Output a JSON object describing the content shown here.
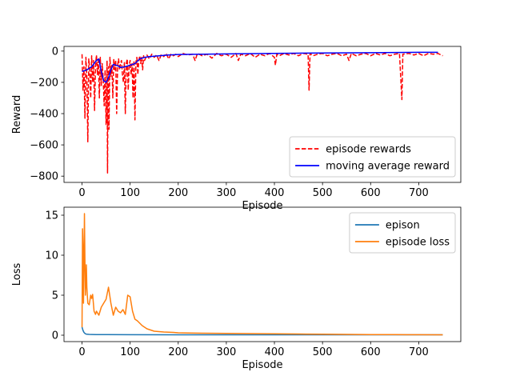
{
  "chart_data": [
    {
      "type": "line",
      "xlabel": "Episode",
      "ylabel": "Reward",
      "xlim": [
        -37.5,
        787.5
      ],
      "ylim": [
        -840,
        30
      ],
      "xticks": [
        0,
        100,
        200,
        300,
        400,
        500,
        600,
        700
      ],
      "yticks": [
        0,
        -200,
        -400,
        -600,
        -800
      ],
      "grid": false,
      "legend_position": "lower right",
      "series": [
        {
          "name": "episode rewards",
          "color": "#ff0000",
          "style": "dashed",
          "points": [
            [
              0,
              -20
            ],
            [
              2,
              -250
            ],
            [
              4,
              -100
            ],
            [
              6,
              -430
            ],
            [
              8,
              -40
            ],
            [
              10,
              -160
            ],
            [
              12,
              -580
            ],
            [
              14,
              -50
            ],
            [
              16,
              -120
            ],
            [
              18,
              -300
            ],
            [
              20,
              -30
            ],
            [
              22,
              -200
            ],
            [
              24,
              -60
            ],
            [
              26,
              -380
            ],
            [
              28,
              -90
            ],
            [
              30,
              -25
            ],
            [
              32,
              -150
            ],
            [
              34,
              -60
            ],
            [
              36,
              -300
            ],
            [
              38,
              -40
            ],
            [
              40,
              -220
            ],
            [
              42,
              -80
            ],
            [
              44,
              -180
            ],
            [
              46,
              -350
            ],
            [
              48,
              -120
            ],
            [
              50,
              -470
            ],
            [
              52,
              -60
            ],
            [
              53,
              -780
            ],
            [
              54,
              -200
            ],
            [
              55,
              -100
            ],
            [
              56,
              -500
            ],
            [
              58,
              -40
            ],
            [
              60,
              -160
            ],
            [
              62,
              -90
            ],
            [
              64,
              -300
            ],
            [
              66,
              -50
            ],
            [
              68,
              -120
            ],
            [
              70,
              -60
            ],
            [
              72,
              -400
            ],
            [
              74,
              -90
            ],
            [
              76,
              -50
            ],
            [
              78,
              -120
            ],
            [
              80,
              -80
            ],
            [
              82,
              -60
            ],
            [
              84,
              -150
            ],
            [
              86,
              -200
            ],
            [
              88,
              -70
            ],
            [
              90,
              -400
            ],
            [
              92,
              -80
            ],
            [
              94,
              -50
            ],
            [
              96,
              -250
            ],
            [
              98,
              -90
            ],
            [
              100,
              -60
            ],
            [
              102,
              -150
            ],
            [
              104,
              -80
            ],
            [
              106,
              -300
            ],
            [
              108,
              -60
            ],
            [
              110,
              -440
            ],
            [
              112,
              -70
            ],
            [
              114,
              -40
            ],
            [
              116,
              -150
            ],
            [
              118,
              -60
            ],
            [
              120,
              -30
            ],
            [
              122,
              -80
            ],
            [
              124,
              -40
            ],
            [
              126,
              -120
            ],
            [
              128,
              -30
            ],
            [
              130,
              -60
            ],
            [
              135,
              -25
            ],
            [
              140,
              -50
            ],
            [
              145,
              -20
            ],
            [
              150,
              -40
            ],
            [
              155,
              -25
            ],
            [
              160,
              -60
            ],
            [
              165,
              -20
            ],
            [
              170,
              -35
            ],
            [
              175,
              -15
            ],
            [
              180,
              -50
            ],
            [
              185,
              -20
            ],
            [
              190,
              -30
            ],
            [
              195,
              -20
            ],
            [
              200,
              -35
            ],
            [
              210,
              -15
            ],
            [
              220,
              -25
            ],
            [
              230,
              -20
            ],
            [
              235,
              -60
            ],
            [
              240,
              -15
            ],
            [
              250,
              -30
            ],
            [
              260,
              -20
            ],
            [
              270,
              -45
            ],
            [
              280,
              -15
            ],
            [
              290,
              -30
            ],
            [
              300,
              -20
            ],
            [
              310,
              -40
            ],
            [
              320,
              -15
            ],
            [
              325,
              -60
            ],
            [
              330,
              -20
            ],
            [
              340,
              -30
            ],
            [
              350,
              -15
            ],
            [
              360,
              -40
            ],
            [
              370,
              -20
            ],
            [
              380,
              -30
            ],
            [
              390,
              -15
            ],
            [
              400,
              -40
            ],
            [
              402,
              -90
            ],
            [
              405,
              -20
            ],
            [
              410,
              -30
            ],
            [
              420,
              -15
            ],
            [
              430,
              -25
            ],
            [
              440,
              -15
            ],
            [
              450,
              -30
            ],
            [
              460,
              -15
            ],
            [
              470,
              -20
            ],
            [
              472,
              -250
            ],
            [
              474,
              -15
            ],
            [
              480,
              -30
            ],
            [
              490,
              -20
            ],
            [
              500,
              -15
            ],
            [
              510,
              -30
            ],
            [
              520,
              -20
            ],
            [
              530,
              -15
            ],
            [
              540,
              -30
            ],
            [
              550,
              -20
            ],
            [
              555,
              -60
            ],
            [
              560,
              -15
            ],
            [
              570,
              -30
            ],
            [
              580,
              -20
            ],
            [
              590,
              -15
            ],
            [
              600,
              -30
            ],
            [
              610,
              -15
            ],
            [
              620,
              -25
            ],
            [
              630,
              -15
            ],
            [
              640,
              -30
            ],
            [
              650,
              -20
            ],
            [
              660,
              -15
            ],
            [
              665,
              -310
            ],
            [
              667,
              -20
            ],
            [
              680,
              -15
            ],
            [
              690,
              -25
            ],
            [
              700,
              -15
            ],
            [
              710,
              -30
            ],
            [
              720,
              -15
            ],
            [
              730,
              -20
            ],
            [
              740,
              -15
            ],
            [
              750,
              -30
            ]
          ]
        },
        {
          "name": "moving average reward",
          "color": "#0000ff",
          "style": "solid",
          "points": [
            [
              0,
              -130
            ],
            [
              5,
              -125
            ],
            [
              10,
              -120
            ],
            [
              15,
              -110
            ],
            [
              20,
              -100
            ],
            [
              25,
              -80
            ],
            [
              30,
              -60
            ],
            [
              35,
              -50
            ],
            [
              40,
              -130
            ],
            [
              45,
              -190
            ],
            [
              50,
              -200
            ],
            [
              55,
              -170
            ],
            [
              60,
              -120
            ],
            [
              65,
              -85
            ],
            [
              70,
              -90
            ],
            [
              75,
              -95
            ],
            [
              80,
              -105
            ],
            [
              90,
              -100
            ],
            [
              100,
              -90
            ],
            [
              110,
              -80
            ],
            [
              120,
              -50
            ],
            [
              130,
              -40
            ],
            [
              140,
              -35
            ],
            [
              160,
              -30
            ],
            [
              180,
              -25
            ],
            [
              200,
              -22
            ],
            [
              250,
              -20
            ],
            [
              300,
              -18
            ],
            [
              400,
              -15
            ],
            [
              500,
              -12
            ],
            [
              600,
              -10
            ],
            [
              700,
              -8
            ],
            [
              740,
              -8
            ]
          ]
        }
      ]
    },
    {
      "type": "line",
      "xlabel": "Episode",
      "ylabel": "Loss",
      "xlim": [
        -37.5,
        787.5
      ],
      "ylim": [
        -0.8,
        16.0
      ],
      "xticks": [
        0,
        100,
        200,
        300,
        400,
        500,
        600,
        700
      ],
      "yticks": [
        0,
        5,
        10,
        15
      ],
      "grid": false,
      "legend_position": "upper right",
      "series": [
        {
          "name": "epison",
          "color": "#1f77b4",
          "style": "solid",
          "points": [
            [
              0,
              1.0
            ],
            [
              2,
              0.6
            ],
            [
              4,
              0.35
            ],
            [
              6,
              0.22
            ],
            [
              8,
              0.15
            ],
            [
              10,
              0.12
            ],
            [
              15,
              0.1
            ],
            [
              20,
              0.09
            ],
            [
              30,
              0.08
            ],
            [
              50,
              0.07
            ],
            [
              100,
              0.06
            ],
            [
              200,
              0.05
            ],
            [
              400,
              0.05
            ],
            [
              600,
              0.05
            ],
            [
              750,
              0.05
            ]
          ]
        },
        {
          "name": "episode loss",
          "color": "#ff7f0e",
          "style": "solid",
          "points": [
            [
              0,
              1.0
            ],
            [
              1,
              13.3
            ],
            [
              2,
              11.0
            ],
            [
              3,
              4.0
            ],
            [
              4,
              9.0
            ],
            [
              5,
              15.2
            ],
            [
              6,
              9.5
            ],
            [
              7,
              5.0
            ],
            [
              8,
              6.5
            ],
            [
              9,
              8.8
            ],
            [
              10,
              6.0
            ],
            [
              12,
              4.0
            ],
            [
              15,
              3.8
            ],
            [
              18,
              5.0
            ],
            [
              20,
              4.6
            ],
            [
              22,
              5.1
            ],
            [
              25,
              3.0
            ],
            [
              28,
              2.6
            ],
            [
              30,
              3.0
            ],
            [
              35,
              2.5
            ],
            [
              40,
              3.5
            ],
            [
              45,
              4.0
            ],
            [
              50,
              4.5
            ],
            [
              55,
              6.0
            ],
            [
              60,
              4.0
            ],
            [
              65,
              2.5
            ],
            [
              70,
              3.5
            ],
            [
              75,
              3.0
            ],
            [
              80,
              2.8
            ],
            [
              85,
              3.2
            ],
            [
              90,
              2.6
            ],
            [
              95,
              5.0
            ],
            [
              100,
              4.8
            ],
            [
              105,
              3.0
            ],
            [
              110,
              2.0
            ],
            [
              115,
              1.8
            ],
            [
              120,
              1.5
            ],
            [
              125,
              1.2
            ],
            [
              130,
              1.0
            ],
            [
              135,
              0.8
            ],
            [
              140,
              0.7
            ],
            [
              150,
              0.5
            ],
            [
              160,
              0.45
            ],
            [
              170,
              0.4
            ],
            [
              180,
              0.38
            ],
            [
              190,
              0.35
            ],
            [
              200,
              0.3
            ],
            [
              220,
              0.28
            ],
            [
              250,
              0.25
            ],
            [
              300,
              0.22
            ],
            [
              350,
              0.2
            ],
            [
              400,
              0.18
            ],
            [
              450,
              0.15
            ],
            [
              500,
              0.12
            ],
            [
              550,
              0.1
            ],
            [
              600,
              0.08
            ],
            [
              650,
              0.07
            ],
            [
              700,
              0.06
            ],
            [
              750,
              0.05
            ]
          ]
        }
      ]
    }
  ]
}
